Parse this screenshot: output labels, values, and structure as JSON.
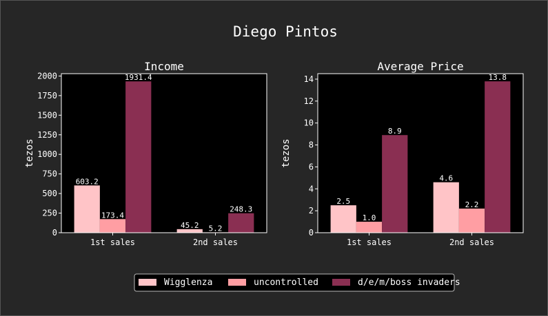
{
  "figure": {
    "title": "Diego Pintos"
  },
  "chart_data": [
    {
      "type": "bar",
      "title": "Income",
      "xlabel": "",
      "ylabel": "tezos",
      "categories": [
        "1st sales",
        "2nd sales"
      ],
      "ylim": [
        0,
        2030
      ],
      "yticks": [
        0,
        250,
        500,
        750,
        1000,
        1250,
        1500,
        1750,
        2000
      ],
      "series": [
        {
          "name": "Wigglenza",
          "values": [
            603.2,
            45.2
          ]
        },
        {
          "name": "uncontrolled",
          "values": [
            173.4,
            5.2
          ]
        },
        {
          "name": "d/e/m/boss invaders",
          "values": [
            1931.4,
            248.3
          ]
        }
      ],
      "value_labels": [
        [
          "603.2",
          "45.2"
        ],
        [
          "173.4",
          "5.2"
        ],
        [
          "1931.4",
          "248.3"
        ]
      ]
    },
    {
      "type": "bar",
      "title": "Average Price",
      "xlabel": "",
      "ylabel": "tezos",
      "categories": [
        "1st sales",
        "2nd sales"
      ],
      "ylim": [
        0,
        14.5
      ],
      "yticks": [
        0,
        2,
        4,
        6,
        8,
        10,
        12,
        14
      ],
      "series": [
        {
          "name": "Wigglenza",
          "values": [
            2.5,
            4.6
          ]
        },
        {
          "name": "uncontrolled",
          "values": [
            1.0,
            2.2
          ]
        },
        {
          "name": "d/e/m/boss invaders",
          "values": [
            8.9,
            13.8
          ]
        }
      ],
      "value_labels": [
        [
          "2.5",
          "4.6"
        ],
        [
          "1.0",
          "2.2"
        ],
        [
          "8.9",
          "13.8"
        ]
      ]
    }
  ],
  "legend": {
    "placement": "bottom-center",
    "entries": [
      "Wigglenza",
      "uncontrolled",
      "d/e/m/boss invaders"
    ]
  },
  "colors": {
    "figure_bg": "#262626",
    "axes_bg": "#000000",
    "axis": "#ffffff",
    "series": [
      "#ffc4c7",
      "#ff9ea3",
      "#8a2f52"
    ]
  }
}
